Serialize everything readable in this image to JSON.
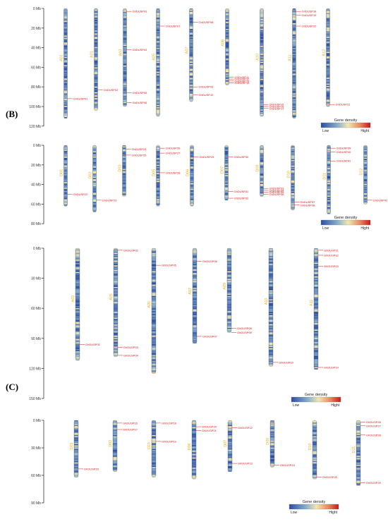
{
  "panel_labels": [
    "(B)",
    "(C)"
  ],
  "legend": {
    "title": "Gene density",
    "low": "Low",
    "high": "Hight"
  },
  "colors": {
    "gene": "#dd1111",
    "chrom_label": "#e8b020",
    "low": "#2244aa",
    "high": "#cc0000",
    "axis": "#333333"
  },
  "chart_data": [
    {
      "type": "diagram",
      "panel": "B-top",
      "axis_ticks": [
        "0 Mb",
        "20 Mb",
        "40 Mb",
        "60 Mb",
        "80 Mb",
        "100 Mb",
        "120 Mb"
      ],
      "axis_max": 120,
      "chromosomes": [
        {
          "name": "A01",
          "length": 112,
          "genes": [
            {
              "id": "GhDUSP01",
              "pos": 92
            }
          ]
        },
        {
          "name": "A01",
          "length": 104,
          "genes": [
            {
              "id": "GhDUSP02",
              "pos": 83
            }
          ]
        },
        {
          "name": "A03",
          "length": 100,
          "genes": [
            {
              "id": "GhDUSP03",
              "pos": 3
            },
            {
              "id": "GhDUSP04",
              "pos": 42
            },
            {
              "id": "GhDUSP05",
              "pos": 86
            },
            {
              "id": "GhDUSP06",
              "pos": 96
            }
          ]
        },
        {
          "name": "A05",
          "length": 110,
          "genes": [
            {
              "id": "GhDUSP07",
              "pos": 18
            }
          ]
        },
        {
          "name": "A07",
          "length": 95,
          "genes": [
            {
              "id": "GhDUSP08",
              "pos": 14
            },
            {
              "id": "GhDUSP09",
              "pos": 80
            },
            {
              "id": "GhDUSP10",
              "pos": 88
            }
          ]
        },
        {
          "name": "A09",
          "length": 78,
          "genes": [
            {
              "id": "GhDUSP11",
              "pos": 70
            },
            {
              "id": "GhDUSP12",
              "pos": 72
            },
            {
              "id": "GhDUSP13",
              "pos": 74
            },
            {
              "id": "GhDUSP14",
              "pos": 76
            }
          ]
        },
        {
          "name": "A10",
          "length": 110,
          "genes": [
            {
              "id": "GhDUSP15",
              "pos": 98
            },
            {
              "id": "GhDUSP16",
              "pos": 100
            },
            {
              "id": "GhDUSP17",
              "pos": 102
            }
          ]
        },
        {
          "name": "A11",
          "length": 112,
          "genes": [
            {
              "id": "GhDUSP18",
              "pos": 3
            },
            {
              "id": "GhDUSP19",
              "pos": 7
            },
            {
              "id": "GhDUSP20",
              "pos": 18
            }
          ]
        },
        {
          "name": "A12",
          "length": 100,
          "genes": [
            {
              "id": "GhDUSP21",
              "pos": 98
            }
          ]
        }
      ]
    },
    {
      "type": "diagram",
      "panel": "B-bottom",
      "axis_ticks": [
        "0 Mb",
        "20 Mb",
        "40 Mb",
        "60 Mb",
        "80 Mb"
      ],
      "axis_max": 80,
      "chromosomes": [
        {
          "name": "D01",
          "length": 62,
          "genes": [
            {
              "id": "GhDUSP22",
              "pos": 50
            }
          ]
        },
        {
          "name": "D02",
          "length": 68,
          "genes": [
            {
              "id": "GhDUSP23",
              "pos": 56
            }
          ]
        },
        {
          "name": "D03",
          "length": 52,
          "genes": [
            {
              "id": "GhDUSP24",
              "pos": 4
            },
            {
              "id": "GhDUSP25",
              "pos": 10
            }
          ]
        },
        {
          "name": "D05",
          "length": 62,
          "genes": [
            {
              "id": "GhDUSP26",
              "pos": 3
            },
            {
              "id": "GhDUSP27",
              "pos": 8
            },
            {
              "id": "GhDUSP28",
              "pos": 28
            }
          ]
        },
        {
          "name": "D06",
          "length": 62,
          "genes": [
            {
              "id": "GhDUSP29",
              "pos": 12
            }
          ]
        },
        {
          "name": "D07",
          "length": 56,
          "genes": [
            {
              "id": "GhDUSP30",
              "pos": 12
            },
            {
              "id": "GhDUSP31",
              "pos": 47
            },
            {
              "id": "GhDUSP32",
              "pos": 54
            }
          ]
        },
        {
          "name": "D09",
          "length": 52,
          "genes": [
            {
              "id": "GhDUSP33",
              "pos": 44
            },
            {
              "id": "GhDUSP34",
              "pos": 46
            },
            {
              "id": "GhDUSP35",
              "pos": 48
            },
            {
              "id": "GhDUSP36",
              "pos": 50
            }
          ]
        },
        {
          "name": "D10",
          "length": 66,
          "genes": [
            {
              "id": "GhDUSP37",
              "pos": 58
            },
            {
              "id": "GhDUSP38",
              "pos": 61
            }
          ]
        },
        {
          "name": "D11",
          "length": 70,
          "genes": [
            {
              "id": "GhDUSP39",
              "pos": 3
            },
            {
              "id": "GhDUSP40",
              "pos": 7
            },
            {
              "id": "GhDUSP41",
              "pos": 16
            }
          ]
        },
        {
          "name": "D12",
          "length": 60,
          "genes": [
            {
              "id": "GhDUSP42",
              "pos": 56
            }
          ]
        }
      ]
    },
    {
      "type": "diagram",
      "panel": "C-top",
      "axis_ticks": [
        "0 Mb",
        "30 Mb",
        "60 Mb",
        "90 Mb",
        "120 Mb",
        "150 Mb"
      ],
      "axis_max": 150,
      "chromosomes": [
        {
          "name": "A03",
          "length": 112,
          "genes": [
            {
              "id": "GhDUSP01",
              "pos": 96
            }
          ]
        },
        {
          "name": "A05",
          "length": 108,
          "genes": [
            {
              "id": "GhDUSP02",
              "pos": 2
            },
            {
              "id": "GhDUSP03",
              "pos": 99
            },
            {
              "id": "GhDUSP04",
              "pos": 107
            }
          ]
        },
        {
          "name": "A06",
          "length": 125,
          "genes": [
            {
              "id": "GhDUSP05",
              "pos": 17
            }
          ]
        },
        {
          "name": "A07",
          "length": 95,
          "genes": [
            {
              "id": "GhDUSP06",
              "pos": 13
            },
            {
              "id": "GhDUSP07",
              "pos": 88
            }
          ]
        },
        {
          "name": "A09",
          "length": 84,
          "genes": [
            {
              "id": "GhDUSP08",
              "pos": 80
            },
            {
              "id": "GhDUSP09",
              "pos": 84
            }
          ]
        },
        {
          "name": "A10",
          "length": 118,
          "genes": [
            {
              "id": "GhDUSP10",
              "pos": 114
            }
          ]
        },
        {
          "name": "A11",
          "length": 121,
          "genes": [
            {
              "id": "GhDUSP11",
              "pos": 2
            },
            {
              "id": "GhDUSP12",
              "pos": 7
            },
            {
              "id": "GhDUSP13",
              "pos": 18
            },
            {
              "id": "GhDUSP14",
              "pos": 119
            }
          ]
        }
      ]
    },
    {
      "type": "diagram",
      "panel": "C-bottom",
      "axis_ticks": [
        "0 Mb",
        "30 Mb",
        "60 Mb",
        "90 Mb"
      ],
      "axis_max": 90,
      "chromosomes": [
        {
          "name": "D01",
          "length": 62,
          "genes": [
            {
              "id": "GhDUSP15",
              "pos": 53
            }
          ]
        },
        {
          "name": "D02",
          "length": 56,
          "genes": [
            {
              "id": "GhDUSP16",
              "pos": 3
            },
            {
              "id": "GhDUSP17",
              "pos": 10
            }
          ]
        },
        {
          "name": "D03",
          "length": 62,
          "genes": [
            {
              "id": "GhDUSP18",
              "pos": 3
            },
            {
              "id": "GhDUSP19",
              "pos": 23
            }
          ]
        },
        {
          "name": "D06",
          "length": 64,
          "genes": [
            {
              "id": "GhDUSP20",
              "pos": 7
            },
            {
              "id": "GhDUSP21",
              "pos": 11
            }
          ]
        },
        {
          "name": "D07",
          "length": 56,
          "genes": [
            {
              "id": "GhDUSP22",
              "pos": 8
            },
            {
              "id": "GhDUSP23",
              "pos": 47
            }
          ]
        },
        {
          "name": "D09",
          "length": 51,
          "genes": [
            {
              "id": "GhDUSP24",
              "pos": 49
            }
          ]
        },
        {
          "name": "D10",
          "length": 64,
          "genes": [
            {
              "id": "GhDUSP25",
              "pos": 62
            }
          ]
        },
        {
          "name": "D11",
          "length": 71,
          "genes": [
            {
              "id": "GhDUSP26",
              "pos": 2
            },
            {
              "id": "GhDUSP27",
              "pos": 6
            },
            {
              "id": "GhDUSP28",
              "pos": 16
            },
            {
              "id": "GhDUSP29",
              "pos": 68
            }
          ]
        }
      ]
    }
  ]
}
